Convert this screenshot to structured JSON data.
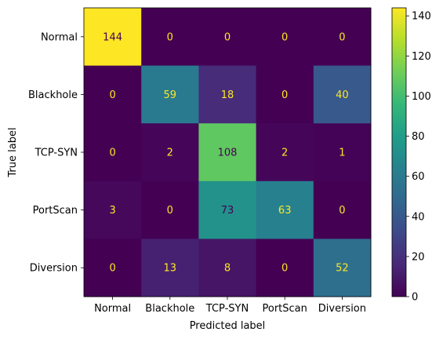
{
  "chart_data": {
    "type": "heatmap",
    "title": "",
    "xlabel": "Predicted label",
    "ylabel": "True label",
    "x_categories": [
      "Normal",
      "Blackhole",
      "TCP-SYN",
      "PortScan",
      "Diversion"
    ],
    "y_categories": [
      "Normal",
      "Blackhole",
      "TCP-SYN",
      "PortScan",
      "Diversion"
    ],
    "values": [
      [
        144,
        0,
        0,
        0,
        0
      ],
      [
        0,
        59,
        18,
        0,
        40
      ],
      [
        0,
        2,
        108,
        2,
        1
      ],
      [
        3,
        0,
        73,
        63,
        0
      ],
      [
        0,
        13,
        8,
        0,
        52
      ]
    ],
    "colormap": "viridis",
    "colorbar": {
      "range": [
        0,
        144
      ],
      "ticks": [
        "0",
        "20",
        "40",
        "60",
        "80",
        "100",
        "120",
        "140"
      ]
    },
    "text_color_light": "#fde725",
    "text_color_dark": "#440154"
  }
}
